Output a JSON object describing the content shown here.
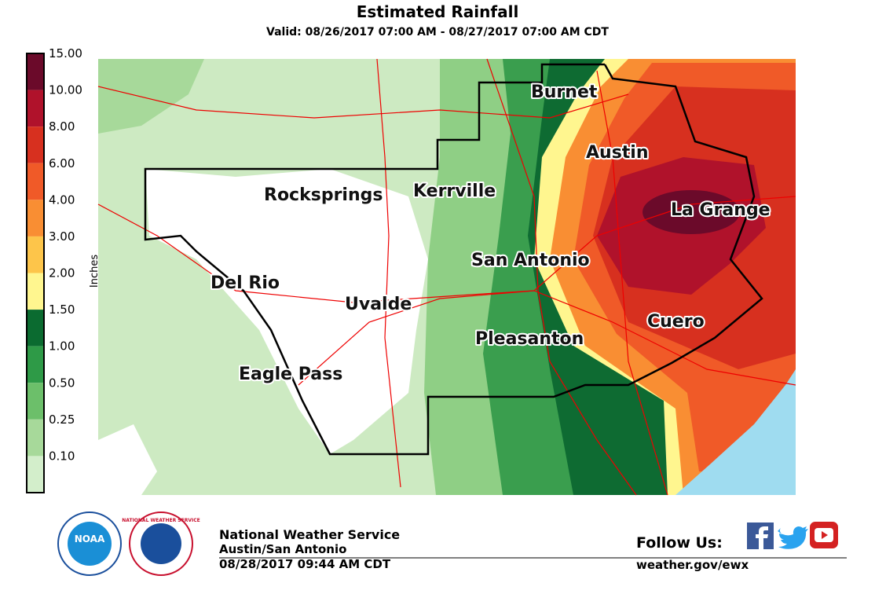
{
  "header": {
    "title": "Estimated Rainfall",
    "subtitle": "Valid: 08/26/2017 07:00 AM - 08/27/2017 07:00 AM CDT"
  },
  "legend": {
    "unit": "Inches",
    "levels": [
      "15.00",
      "10.00",
      "8.00",
      "6.00",
      "4.00",
      "3.00",
      "2.00",
      "1.50",
      "1.00",
      "0.50",
      "0.25",
      "0.10"
    ],
    "colors": [
      "#6b0a2a",
      "#b0122b",
      "#d7301f",
      "#f05a28",
      "#f98e33",
      "#fdc54a",
      "#fff68f",
      "#0b6b30",
      "#2e9a47",
      "#6cbf6a",
      "#a7d99a",
      "#d3eecb"
    ]
  },
  "map": {
    "places": [
      "Burnet",
      "Austin",
      "La Grange",
      "Rocksprings",
      "Kerrville",
      "San Antonio",
      "Del Rio",
      "Uvalde",
      "Cuero",
      "Pleasanton",
      "Eagle Pass"
    ]
  },
  "footer": {
    "logos": [
      "NOAA",
      "NATIONAL WEATHER SERVICE"
    ],
    "office": [
      "National Weather Service",
      "Austin/San Antonio",
      "08/28/2017 09:44 AM CDT"
    ],
    "follow": "Follow Us:",
    "url": "weather.gov/ewx"
  }
}
